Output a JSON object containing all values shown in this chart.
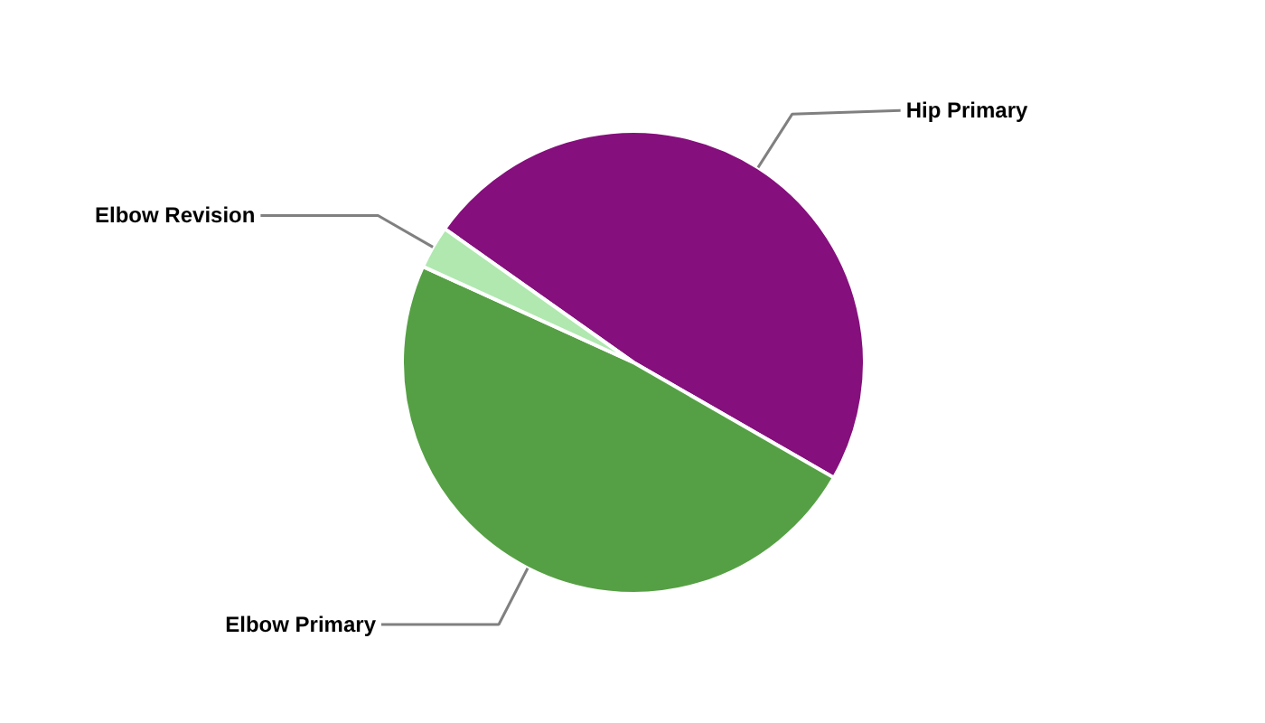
{
  "chart_data": {
    "type": "pie",
    "categories": [
      "Hip Primary",
      "Elbow Primary",
      "Elbow Revision"
    ],
    "values": [
      48.5,
      48.5,
      3
    ],
    "colors": [
      "#850f7c",
      "#55a044",
      "#b0e8b0"
    ]
  }
}
